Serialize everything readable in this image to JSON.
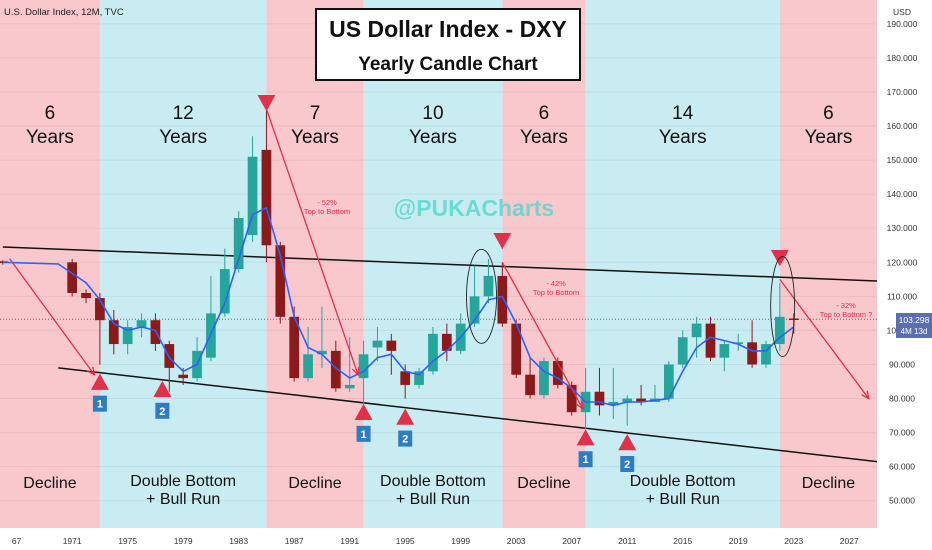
{
  "header": {
    "symbol_line": "U.S. Dollar Index, 12M, TVC",
    "currency": "USD"
  },
  "title_box": {
    "line1": "US Dollar Index - DXY",
    "line2": "Yearly Candle Chart"
  },
  "watermark": "@PUKACharts",
  "price_tag": {
    "value": "103.298",
    "countdown": "4M 13d"
  },
  "colors": {
    "decline_band": "#f8c8cc",
    "bull_band": "#c8ecf2",
    "up_candle": "#26a69a",
    "down_candle": "#8b1a1a",
    "ma_line": "#2962ff",
    "accent_red": "#e0304a",
    "badge_blue": "#2e7dc2"
  },
  "periods": [
    {
      "count": "6",
      "unit": "Years",
      "phase": "Decline",
      "start": 1965,
      "end": 1973,
      "kind": "decline"
    },
    {
      "count": "12",
      "unit": "Years",
      "phase": "Double Bottom\n+ Bull Run",
      "start": 1973,
      "end": 1985,
      "kind": "bull"
    },
    {
      "count": "7",
      "unit": "Years",
      "phase": "Decline",
      "start": 1985,
      "end": 1992,
      "kind": "decline"
    },
    {
      "count": "10",
      "unit": "Years",
      "phase": "Double Bottom\n+ Bull Run",
      "start": 1992,
      "end": 2002,
      "kind": "bull"
    },
    {
      "count": "6",
      "unit": "Years",
      "phase": "Decline",
      "start": 2002,
      "end": 2008,
      "kind": "decline"
    },
    {
      "count": "14",
      "unit": "Years",
      "phase": "Double Bottom\n+ Bull Run",
      "start": 2008,
      "end": 2022,
      "kind": "bull"
    },
    {
      "count": "6",
      "unit": "Years",
      "phase": "Decline",
      "start": 2022,
      "end": 2029,
      "kind": "decline"
    }
  ],
  "annotations": {
    "drop_1985": {
      "pct": "- 52%",
      "text": "Top to Bottom"
    },
    "drop_2002": {
      "pct": "- 42%",
      "text": "Top to Bottom"
    },
    "drop_2022": {
      "pct": "- 32%",
      "text": "Top to Bottom ?"
    }
  },
  "badges": [
    {
      "label": "1",
      "year": 1973
    },
    {
      "label": "2",
      "year": 1977.5
    },
    {
      "label": "1",
      "year": 1992
    },
    {
      "label": "2",
      "year": 1995
    },
    {
      "label": "1",
      "year": 2008
    },
    {
      "label": "2",
      "year": 2011
    }
  ],
  "chart_data": {
    "type": "candlestick",
    "title": "US Dollar Index - DXY",
    "subtitle": "Yearly Candle Chart",
    "x_range": [
      1965.8,
      2029
    ],
    "y_range": [
      42,
      197
    ],
    "x_ticks": [
      "67",
      "1971",
      "1975",
      "1979",
      "1983",
      "1987",
      "1991",
      "1995",
      "1999",
      "2003",
      "2007",
      "2011",
      "2015",
      "2019",
      "2023",
      "2027"
    ],
    "x_tick_years": [
      1967,
      1971,
      1975,
      1979,
      1983,
      1987,
      1991,
      1995,
      1999,
      2003,
      2007,
      2011,
      2015,
      2019,
      2023,
      2027
    ],
    "y_ticks": [
      "50.000",
      "60.000",
      "70.000",
      "80.000",
      "90.000",
      "100.000",
      "110.000",
      "120.000",
      "130.000",
      "140.000",
      "150.000",
      "160.000",
      "170.000",
      "180.000",
      "190.000"
    ],
    "y_tick_values": [
      50,
      60,
      70,
      80,
      90,
      100,
      110,
      120,
      130,
      140,
      150,
      160,
      170,
      180,
      190
    ],
    "candles": [
      {
        "year": 1966,
        "open": 120.3,
        "close": 119.8,
        "high": 120.6,
        "low": 119.3
      },
      {
        "year": 1971,
        "open": 120.0,
        "close": 111.0,
        "high": 121.0,
        "low": 110.0
      },
      {
        "year": 1972,
        "open": 111.0,
        "close": 109.5,
        "high": 112.0,
        "low": 108.0
      },
      {
        "year": 1973,
        "open": 109.5,
        "close": 103.0,
        "high": 111.0,
        "low": 90.0
      },
      {
        "year": 1974,
        "open": 103.0,
        "close": 96.0,
        "high": 106.0,
        "low": 93.0
      },
      {
        "year": 1975,
        "open": 96.0,
        "close": 101.0,
        "high": 103.0,
        "low": 93.0
      },
      {
        "year": 1976,
        "open": 101.0,
        "close": 103.0,
        "high": 105.0,
        "low": 98.0
      },
      {
        "year": 1977,
        "open": 103.0,
        "close": 96.0,
        "high": 105.0,
        "low": 94.0
      },
      {
        "year": 1978,
        "open": 96.0,
        "close": 89.0,
        "high": 97.0,
        "low": 82.0
      },
      {
        "year": 1979,
        "open": 87.0,
        "close": 86.0,
        "high": 89.0,
        "low": 84.0
      },
      {
        "year": 1980,
        "open": 86.0,
        "close": 94.0,
        "high": 98.0,
        "low": 85.0
      },
      {
        "year": 1981,
        "open": 92.0,
        "close": 105.0,
        "high": 116.0,
        "low": 91.0
      },
      {
        "year": 1982,
        "open": 105.0,
        "close": 118.0,
        "high": 124.0,
        "low": 104.0
      },
      {
        "year": 1983,
        "open": 118.0,
        "close": 133.0,
        "high": 135.0,
        "low": 117.0
      },
      {
        "year": 1984,
        "open": 128.0,
        "close": 151.0,
        "high": 157.0,
        "low": 126.0
      },
      {
        "year": 1985,
        "open": 153.0,
        "close": 125.0,
        "high": 165.0,
        "low": 120.0
      },
      {
        "year": 1986,
        "open": 125.0,
        "close": 104.0,
        "high": 126.0,
        "low": 102.0
      },
      {
        "year": 1987,
        "open": 104.0,
        "close": 86.0,
        "high": 107.0,
        "low": 85.0
      },
      {
        "year": 1988,
        "open": 86.0,
        "close": 93.0,
        "high": 101.0,
        "low": 85.0
      },
      {
        "year": 1989,
        "open": 93.0,
        "close": 94.0,
        "high": 107.0,
        "low": 89.0
      },
      {
        "year": 1990,
        "open": 94.0,
        "close": 83.0,
        "high": 97.0,
        "low": 82.0
      },
      {
        "year": 1991,
        "open": 83.0,
        "close": 84.0,
        "high": 98.0,
        "low": 82.0
      },
      {
        "year": 1992,
        "open": 86.0,
        "close": 93.0,
        "high": 97.0,
        "low": 78.0
      },
      {
        "year": 1993,
        "open": 95.0,
        "close": 97.0,
        "high": 101.0,
        "low": 91.0
      },
      {
        "year": 1994,
        "open": 97.0,
        "close": 94.0,
        "high": 99.0,
        "low": 87.0
      },
      {
        "year": 1995,
        "open": 88.0,
        "close": 84.0,
        "high": 90.0,
        "low": 80.0
      },
      {
        "year": 1996,
        "open": 84.0,
        "close": 88.0,
        "high": 89.0,
        "low": 83.0
      },
      {
        "year": 1997,
        "open": 88.0,
        "close": 99.0,
        "high": 101.0,
        "low": 87.0
      },
      {
        "year": 1998,
        "open": 99.0,
        "close": 94.0,
        "high": 102.0,
        "low": 91.0
      },
      {
        "year": 1999,
        "open": 94.0,
        "close": 102.0,
        "high": 105.0,
        "low": 93.0
      },
      {
        "year": 2000,
        "open": 102.0,
        "close": 110.0,
        "high": 119.0,
        "low": 101.0
      },
      {
        "year": 2001,
        "open": 110.0,
        "close": 116.0,
        "high": 121.0,
        "low": 108.0
      },
      {
        "year": 2002,
        "open": 116.0,
        "close": 102.0,
        "high": 120.0,
        "low": 101.0
      },
      {
        "year": 2003,
        "open": 102.0,
        "close": 87.0,
        "high": 103.0,
        "low": 86.0
      },
      {
        "year": 2004,
        "open": 87.0,
        "close": 81.0,
        "high": 92.0,
        "low": 80.0
      },
      {
        "year": 2005,
        "open": 81.0,
        "close": 91.0,
        "high": 92.0,
        "low": 80.0
      },
      {
        "year": 2006,
        "open": 91.0,
        "close": 84.0,
        "high": 92.0,
        "low": 83.0
      },
      {
        "year": 2007,
        "open": 84.0,
        "close": 76.0,
        "high": 85.0,
        "low": 75.0
      },
      {
        "year": 2008,
        "open": 76.0,
        "close": 82.0,
        "high": 89.0,
        "low": 71.0
      },
      {
        "year": 2009,
        "open": 82.0,
        "close": 78.0,
        "high": 89.0,
        "low": 75.0
      },
      {
        "year": 2010,
        "open": 78.0,
        "close": 79.0,
        "high": 89.0,
        "low": 74.0
      },
      {
        "year": 2011,
        "open": 79.0,
        "close": 80.0,
        "high": 81.0,
        "low": 72.0
      },
      {
        "year": 2012,
        "open": 80.0,
        "close": 79.0,
        "high": 84.0,
        "low": 78.0
      },
      {
        "year": 2013,
        "open": 79.0,
        "close": 80.0,
        "high": 84.0,
        "low": 79.0
      },
      {
        "year": 2014,
        "open": 80.0,
        "close": 90.0,
        "high": 91.0,
        "low": 79.0
      },
      {
        "year": 2015,
        "open": 90.0,
        "close": 98.0,
        "high": 100.0,
        "low": 89.0
      },
      {
        "year": 2016,
        "open": 98.0,
        "close": 102.0,
        "high": 104.0,
        "low": 92.0
      },
      {
        "year": 2017,
        "open": 102.0,
        "close": 92.0,
        "high": 104.0,
        "low": 91.0
      },
      {
        "year": 2018,
        "open": 92.0,
        "close": 96.0,
        "high": 97.0,
        "low": 88.0
      },
      {
        "year": 2019,
        "open": 96.0,
        "close": 96.5,
        "high": 99.0,
        "low": 94.0
      },
      {
        "year": 2020,
        "open": 96.5,
        "close": 90.0,
        "high": 103.0,
        "low": 89.0
      },
      {
        "year": 2021,
        "open": 90.0,
        "close": 96.0,
        "high": 97.0,
        "low": 89.0
      },
      {
        "year": 2022,
        "open": 96.0,
        "close": 104.0,
        "high": 114.0,
        "low": 94.0
      },
      {
        "year": 2023,
        "open": 103.5,
        "close": 103.3,
        "high": 105.0,
        "low": 99.0
      }
    ],
    "moving_average": [
      {
        "year": 1966,
        "value": 120.0
      },
      {
        "year": 1970,
        "value": 119.5
      },
      {
        "year": 1972,
        "value": 114.0
      },
      {
        "year": 1973,
        "value": 109.0
      },
      {
        "year": 1974,
        "value": 102.0
      },
      {
        "year": 1975,
        "value": 100.0
      },
      {
        "year": 1976,
        "value": 101.0
      },
      {
        "year": 1977,
        "value": 100.0
      },
      {
        "year": 1978,
        "value": 92.0
      },
      {
        "year": 1979,
        "value": 88.0
      },
      {
        "year": 1980,
        "value": 90.0
      },
      {
        "year": 1981,
        "value": 99.0
      },
      {
        "year": 1982,
        "value": 108.0
      },
      {
        "year": 1983,
        "value": 121.0
      },
      {
        "year": 1984,
        "value": 134.0
      },
      {
        "year": 1985,
        "value": 136.0
      },
      {
        "year": 1986,
        "value": 122.0
      },
      {
        "year": 1987,
        "value": 104.0
      },
      {
        "year": 1988,
        "value": 95.0
      },
      {
        "year": 1989,
        "value": 93.0
      },
      {
        "year": 1990,
        "value": 89.0
      },
      {
        "year": 1991,
        "value": 86.0
      },
      {
        "year": 1992,
        "value": 88.0
      },
      {
        "year": 1993,
        "value": 92.0
      },
      {
        "year": 1994,
        "value": 93.0
      },
      {
        "year": 1995,
        "value": 88.0
      },
      {
        "year": 1996,
        "value": 87.0
      },
      {
        "year": 1997,
        "value": 91.0
      },
      {
        "year": 1998,
        "value": 94.0
      },
      {
        "year": 1999,
        "value": 98.0
      },
      {
        "year": 2000,
        "value": 103.0
      },
      {
        "year": 2001,
        "value": 109.0
      },
      {
        "year": 2002,
        "value": 110.0
      },
      {
        "year": 2003,
        "value": 102.0
      },
      {
        "year": 2004,
        "value": 92.0
      },
      {
        "year": 2005,
        "value": 88.0
      },
      {
        "year": 2006,
        "value": 86.0
      },
      {
        "year": 2007,
        "value": 83.0
      },
      {
        "year": 2008,
        "value": 79.0
      },
      {
        "year": 2009,
        "value": 79.0
      },
      {
        "year": 2010,
        "value": 78.0
      },
      {
        "year": 2011,
        "value": 79.0
      },
      {
        "year": 2012,
        "value": 79.0
      },
      {
        "year": 2013,
        "value": 79.5
      },
      {
        "year": 2014,
        "value": 80.0
      },
      {
        "year": 2015,
        "value": 88.0
      },
      {
        "year": 2016,
        "value": 95.0
      },
      {
        "year": 2017,
        "value": 98.0
      },
      {
        "year": 2018,
        "value": 97.0
      },
      {
        "year": 2019,
        "value": 96.0
      },
      {
        "year": 2020,
        "value": 94.0
      },
      {
        "year": 2021,
        "value": 94.0
      },
      {
        "year": 2022,
        "value": 98.0
      },
      {
        "year": 2023,
        "value": 101.0
      }
    ],
    "trendlines": {
      "resistance": [
        [
          1966,
          124.5
        ],
        [
          2029,
          114.5
        ]
      ],
      "support": [
        [
          1970,
          89.0
        ],
        [
          2029,
          61.5
        ]
      ]
    },
    "last_price": 103.298
  }
}
